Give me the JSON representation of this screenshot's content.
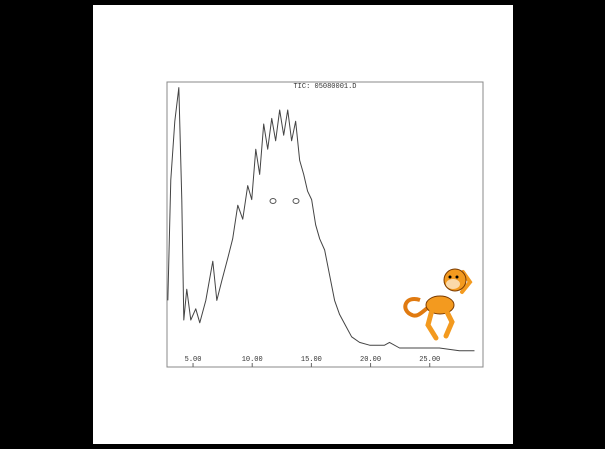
{
  "chart_data": {
    "type": "line",
    "title": "TIC: 05080001.D",
    "x": [
      2.87,
      3.12,
      3.46,
      3.8,
      4.05,
      4.22,
      4.47,
      4.81,
      5.23,
      5.57,
      6.08,
      6.67,
      7.01,
      7.43,
      7.93,
      8.35,
      8.78,
      9.2,
      9.62,
      9.96,
      10.3,
      10.63,
      10.97,
      11.31,
      11.65,
      11.98,
      12.32,
      12.66,
      13.0,
      13.33,
      13.67,
      14.01,
      14.35,
      14.68,
      15.02,
      15.36,
      15.7,
      16.12,
      16.54,
      16.96,
      17.38,
      17.89,
      18.4,
      19.07,
      19.92,
      21.18,
      21.6,
      22.45,
      24.14,
      25.82,
      27.51,
      28.78
    ],
    "series": [
      {
        "color": "#444444",
        "values": [
          22,
          65,
          86,
          98,
          58,
          15,
          26,
          15,
          19,
          14,
          22,
          36,
          22,
          29,
          37,
          44,
          56,
          51,
          63,
          58,
          76,
          67,
          85,
          76,
          87,
          79,
          90,
          81,
          90,
          79,
          86,
          72,
          67,
          61,
          58,
          49,
          44,
          40,
          31,
          22,
          17,
          13,
          9,
          7,
          6,
          6,
          7,
          5,
          5,
          5,
          4,
          4
        ]
      }
    ],
    "xlim": [
      2.8,
      29.5
    ],
    "xticks": [
      {
        "value": 5,
        "label": "5.00"
      },
      {
        "value": 10,
        "label": "10.00"
      },
      {
        "value": 15,
        "label": "15.00"
      },
      {
        "value": 20,
        "label": "20.00"
      },
      {
        "value": 25,
        "label": "25.00"
      }
    ],
    "ylim": [
      0,
      100
    ]
  }
}
